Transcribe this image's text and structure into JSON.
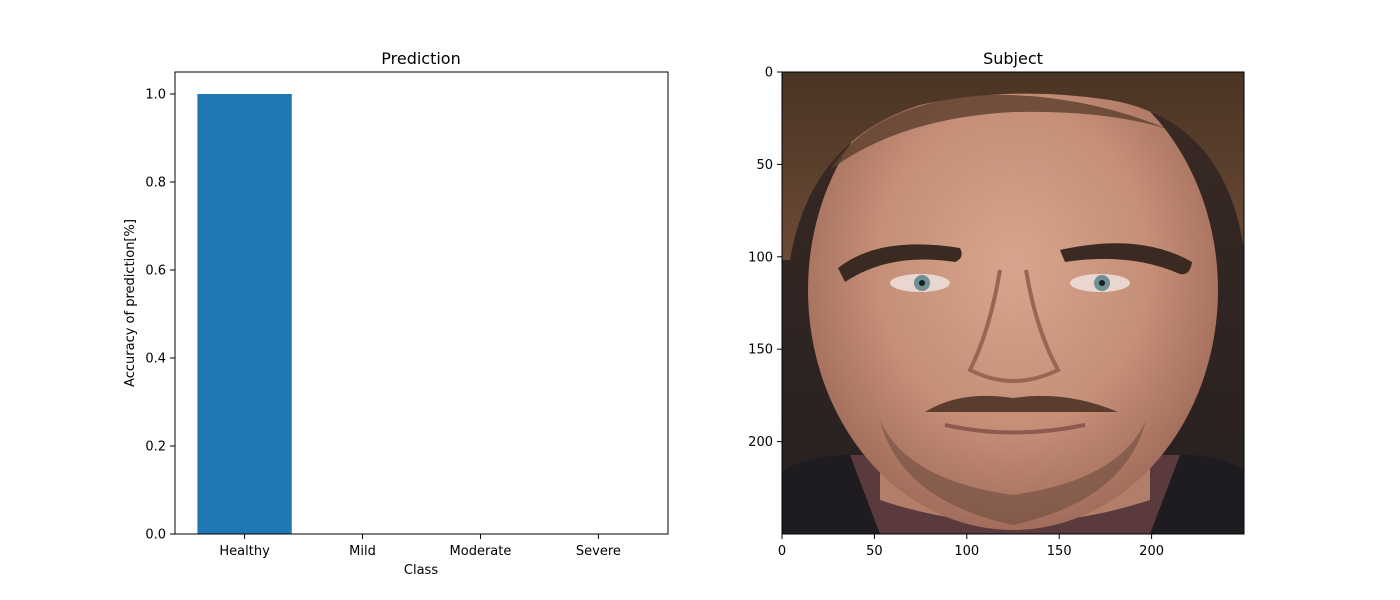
{
  "chart_data": [
    {
      "type": "bar",
      "title": "Prediction",
      "xlabel": "Class",
      "ylabel": "Accuracy of prediction[%]",
      "categories": [
        "Healthy",
        "Mild",
        "Moderate",
        "Severe"
      ],
      "values": [
        1.0,
        0.0,
        0.0,
        0.0
      ],
      "ylim": [
        0,
        1.05
      ],
      "yticks": [
        "0.0",
        "0.2",
        "0.4",
        "0.6",
        "0.8",
        "1.0"
      ],
      "bar_color": "#1f77b4",
      "grid": false
    },
    {
      "type": "image",
      "title": "Subject",
      "xlim": [
        0,
        250
      ],
      "ylim": [
        250,
        0
      ],
      "xticks": [
        "0",
        "50",
        "100",
        "150",
        "200"
      ],
      "yticks": [
        "0",
        "50",
        "100",
        "150",
        "200"
      ],
      "image_content": "face-photo",
      "grid": false
    }
  ]
}
